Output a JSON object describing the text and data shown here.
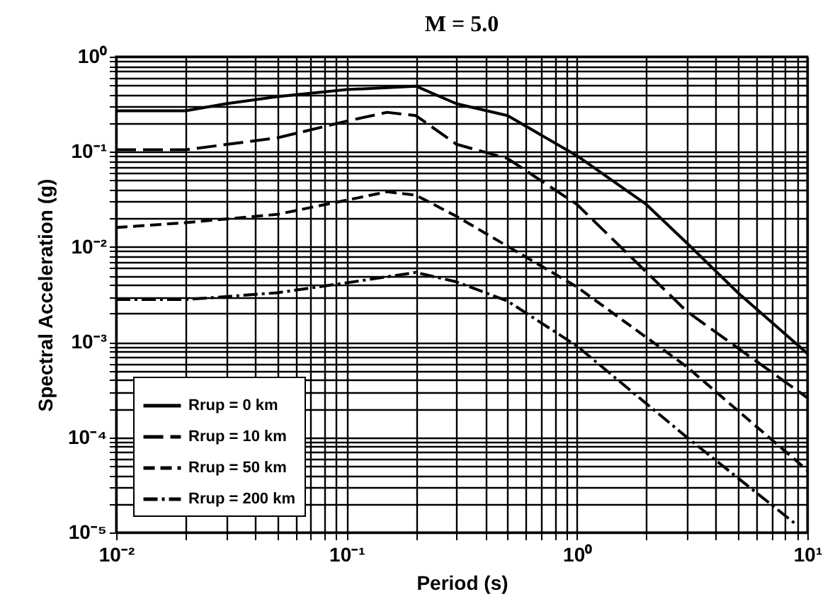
{
  "chart_data": {
    "type": "line",
    "title": "M = 5.0",
    "xlabel": "Period (s)",
    "ylabel": "Spectral Acceleration (g)",
    "log": "xy",
    "grid": true,
    "legend": "bottom left",
    "marker": "none",
    "xlim": [
      0.01,
      10
    ],
    "ylim": [
      1e-05,
      1
    ],
    "xticks": [
      {
        "value": 0.01,
        "label": "10⁻²"
      },
      {
        "value": 0.02,
        "label": null
      },
      {
        "value": 0.03,
        "label": null
      },
      {
        "value": 0.04,
        "label": null
      },
      {
        "value": 0.05,
        "label": null
      },
      {
        "value": 0.06,
        "label": null
      },
      {
        "value": 0.07,
        "label": null
      },
      {
        "value": 0.08,
        "label": null
      },
      {
        "value": 0.09,
        "label": null
      },
      {
        "value": 0.1,
        "label": "10⁻¹"
      },
      {
        "value": 0.2,
        "label": null
      },
      {
        "value": 0.3,
        "label": null
      },
      {
        "value": 0.4,
        "label": null
      },
      {
        "value": 0.5,
        "label": null
      },
      {
        "value": 0.6,
        "label": null
      },
      {
        "value": 0.7,
        "label": null
      },
      {
        "value": 0.8,
        "label": null
      },
      {
        "value": 0.9,
        "label": null
      },
      {
        "value": 1,
        "label": "10⁰"
      },
      {
        "value": 2,
        "label": null
      },
      {
        "value": 3,
        "label": null
      },
      {
        "value": 4,
        "label": null
      },
      {
        "value": 5,
        "label": null
      },
      {
        "value": 6,
        "label": null
      },
      {
        "value": 7,
        "label": null
      },
      {
        "value": 8,
        "label": null
      },
      {
        "value": 9,
        "label": null
      },
      {
        "value": 10,
        "label": "10¹"
      }
    ],
    "yticks": [
      {
        "value": 1e-05,
        "label": "10⁻⁵"
      },
      {
        "value": 2e-05,
        "label": null
      },
      {
        "value": 3e-05,
        "label": null
      },
      {
        "value": 4e-05,
        "label": null
      },
      {
        "value": 5e-05,
        "label": null
      },
      {
        "value": 6e-05,
        "label": null
      },
      {
        "value": 7e-05,
        "label": null
      },
      {
        "value": 8e-05,
        "label": null
      },
      {
        "value": 9e-05,
        "label": null
      },
      {
        "value": 0.0001,
        "label": "10⁻⁴"
      },
      {
        "value": 0.0002,
        "label": null
      },
      {
        "value": 0.0003,
        "label": null
      },
      {
        "value": 0.0004,
        "label": null
      },
      {
        "value": 0.0005,
        "label": null
      },
      {
        "value": 0.0006,
        "label": null
      },
      {
        "value": 0.0007,
        "label": null
      },
      {
        "value": 0.0008,
        "label": null
      },
      {
        "value": 0.0009,
        "label": null
      },
      {
        "value": 0.001,
        "label": "10⁻³"
      },
      {
        "value": 0.002,
        "label": null
      },
      {
        "value": 0.003,
        "label": null
      },
      {
        "value": 0.004,
        "label": null
      },
      {
        "value": 0.005,
        "label": null
      },
      {
        "value": 0.006,
        "label": null
      },
      {
        "value": 0.007,
        "label": null
      },
      {
        "value": 0.008,
        "label": null
      },
      {
        "value": 0.009,
        "label": null
      },
      {
        "value": 0.01,
        "label": "10⁻²"
      },
      {
        "value": 0.02,
        "label": null
      },
      {
        "value": 0.03,
        "label": null
      },
      {
        "value": 0.04,
        "label": null
      },
      {
        "value": 0.05,
        "label": null
      },
      {
        "value": 0.06,
        "label": null
      },
      {
        "value": 0.07,
        "label": null
      },
      {
        "value": 0.08,
        "label": null
      },
      {
        "value": 0.09,
        "label": null
      },
      {
        "value": 0.1,
        "label": "10⁻¹"
      },
      {
        "value": 0.2,
        "label": null
      },
      {
        "value": 0.3,
        "label": null
      },
      {
        "value": 0.4,
        "label": null
      },
      {
        "value": 0.5,
        "label": null
      },
      {
        "value": 0.6,
        "label": null
      },
      {
        "value": 0.7,
        "label": null
      },
      {
        "value": 0.8,
        "label": null
      },
      {
        "value": 0.9,
        "label": null
      },
      {
        "value": 1,
        "label": "10⁰"
      }
    ],
    "series": [
      {
        "name": "Rrup = 0 km",
        "color": "#000000",
        "line_style": "solid",
        "x": [
          0.01,
          0.02,
          0.03,
          0.05,
          0.1,
          0.2,
          0.3,
          0.5,
          1,
          2,
          3,
          5,
          10
        ],
        "values": [
          0.27,
          0.27,
          0.32,
          0.38,
          0.45,
          0.49,
          0.32,
          0.24,
          0.091,
          0.028,
          0.011,
          0.0033,
          0.00076
        ]
      },
      {
        "name": "Rrup = 10 km",
        "color": "#000000",
        "line_style": "longdash",
        "x": [
          0.01,
          0.02,
          0.05,
          0.1,
          0.15,
          0.2,
          0.3,
          0.5,
          1,
          3,
          10
        ],
        "values": [
          0.105,
          0.105,
          0.14,
          0.21,
          0.26,
          0.24,
          0.12,
          0.085,
          0.028,
          0.0021,
          0.00026
        ]
      },
      {
        "name": "Rrup = 50 km",
        "color": "#000000",
        "line_style": "dashed",
        "x": [
          0.01,
          0.02,
          0.05,
          0.1,
          0.15,
          0.2,
          0.3,
          1,
          3,
          10
        ],
        "values": [
          0.016,
          0.018,
          0.022,
          0.031,
          0.038,
          0.035,
          0.021,
          0.0038,
          0.00055,
          4.5e-05
        ]
      },
      {
        "name": "Rrup = 200 km",
        "color": "#000000",
        "line_style": "dashdot",
        "x": [
          0.01,
          0.02,
          0.05,
          0.1,
          0.2,
          0.3,
          0.5,
          1,
          3,
          9
        ],
        "values": [
          0.0028,
          0.0028,
          0.0033,
          0.0042,
          0.0054,
          0.0043,
          0.0027,
          0.00091,
          0.0001,
          1.2e-05
        ]
      }
    ]
  }
}
